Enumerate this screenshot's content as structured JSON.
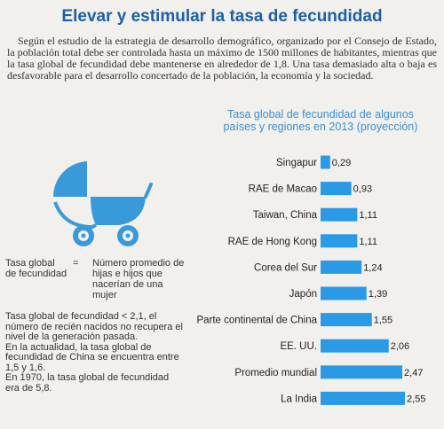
{
  "title": "Elevar y estimular la tasa de fecundidad",
  "intro": "Según el estudio de la estrategia de desarrollo demográfico, organizado por el Consejo de Estado, la población total debe ser controlada hasta un máximo de 1500 millones de habitantes, mientras que la tasa global de fecundidad debe mantenerse en alrededor de 1,8. Una tasa demasiado alta o baja es desfavorable para el desarrollo concertado de la población, la economía y la sociedad.",
  "definition": {
    "term": "Tasa global de fecundidad",
    "equals": "=",
    "meaning": "Número promedio de hijas e hijos que nacerían de una mujer"
  },
  "notes": [
    "Tasa global de fecundidad < 2,1, el número de recién nacidos no recupera el nivel de la generación pasada.",
    "En la actualidad, la tasa global de fecundidad de China se encuentra entre 1,5 y 1,6.",
    "En 1970, la tasa global de fecundidad era de 5,8."
  ],
  "colors": {
    "title": "#1d5fa8",
    "accent": "#2a9ae6",
    "stroller": "#3a9ad9"
  },
  "icon": "baby-stroller-icon",
  "chart_data": {
    "type": "bar",
    "orientation": "horizontal",
    "title": "Tasa global de fecundidad de algunos países y regiones en 2013 (proyección)",
    "categories": [
      "Singapur",
      "RAE de Macao",
      "Taiwan, China",
      "RAE de Hong Kong",
      "Corea del Sur",
      "Japón",
      "Parte continental de China",
      "EE. UU.",
      "Promedio mundial",
      "La India"
    ],
    "values": [
      0.29,
      0.93,
      1.11,
      1.11,
      1.24,
      1.39,
      1.55,
      2.06,
      2.47,
      2.55
    ],
    "value_labels": [
      "0,29",
      "0,93",
      "1,11",
      "1,11",
      "1,24",
      "1,39",
      "1,55",
      "2,06",
      "2,47",
      "2,55"
    ],
    "xlim": [
      0,
      2.55
    ],
    "grid": false,
    "legend": "none"
  }
}
